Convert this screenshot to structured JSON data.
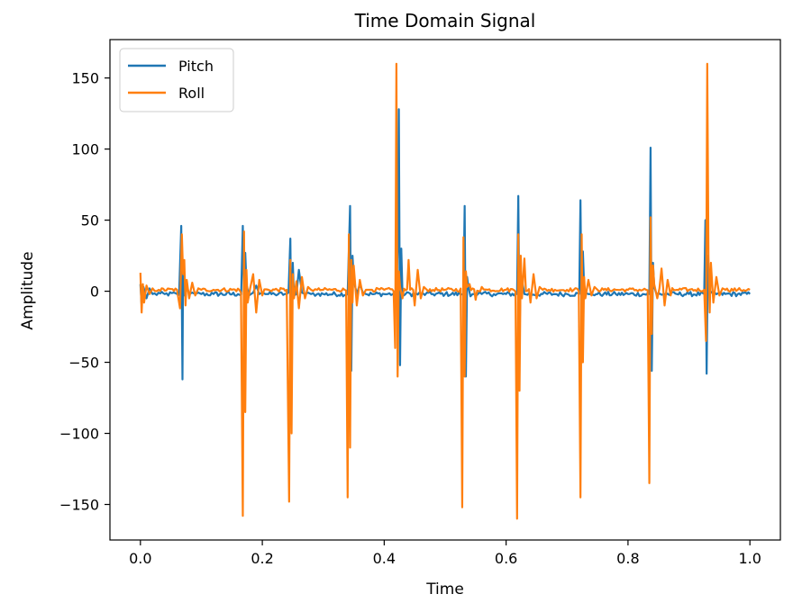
{
  "chart_data": {
    "type": "line",
    "title": "Time Domain Signal",
    "xlabel": "Time",
    "ylabel": "Amplitude",
    "xlim": [
      -0.05,
      1.05
    ],
    "ylim": [
      -175,
      177
    ],
    "xticks": [
      0.0,
      0.2,
      0.4,
      0.6,
      0.8,
      1.0
    ],
    "xtick_labels": [
      "0.0",
      "0.2",
      "0.4",
      "0.6",
      "0.8",
      "1.0"
    ],
    "yticks": [
      -150,
      -100,
      -50,
      0,
      50,
      100,
      150
    ],
    "ytick_labels": [
      "−150",
      "−100",
      "−50",
      "0",
      "50",
      "100",
      "150"
    ],
    "grid": false,
    "legend_position": "upper-left",
    "series": [
      {
        "name": "Pitch",
        "color": "#1f77b4",
        "baseline": -2,
        "x": [
          0.0,
          0.002,
          0.005,
          0.01,
          0.015,
          0.02,
          0.03,
          0.04,
          0.06,
          0.067,
          0.069,
          0.07,
          0.072,
          0.075,
          0.08,
          0.085,
          0.09,
          0.095,
          0.1,
          0.12,
          0.16,
          0.168,
          0.17,
          0.172,
          0.174,
          0.178,
          0.185,
          0.19,
          0.195,
          0.2,
          0.205,
          0.21,
          0.22,
          0.24,
          0.246,
          0.248,
          0.25,
          0.252,
          0.256,
          0.26,
          0.265,
          0.27,
          0.275,
          0.28,
          0.29,
          0.3,
          0.34,
          0.344,
          0.346,
          0.348,
          0.35,
          0.355,
          0.36,
          0.365,
          0.37,
          0.38,
          0.4,
          0.42,
          0.422,
          0.424,
          0.426,
          0.428,
          0.43,
          0.44,
          0.45,
          0.46,
          0.47,
          0.48,
          0.5,
          0.53,
          0.532,
          0.534,
          0.536,
          0.538,
          0.545,
          0.55,
          0.56,
          0.58,
          0.6,
          0.618,
          0.62,
          0.622,
          0.624,
          0.626,
          0.63,
          0.64,
          0.65,
          0.66,
          0.68,
          0.7,
          0.72,
          0.722,
          0.724,
          0.726,
          0.728,
          0.735,
          0.74,
          0.75,
          0.76,
          0.78,
          0.8,
          0.835,
          0.837,
          0.839,
          0.841,
          0.843,
          0.85,
          0.86,
          0.87,
          0.88,
          0.9,
          0.925,
          0.927,
          0.929,
          0.931,
          0.933,
          0.94,
          0.95,
          0.96,
          0.98,
          1.0
        ],
        "y": [
          5,
          -10,
          3,
          -5,
          2,
          -2,
          -1,
          -2,
          -2,
          46,
          -62,
          20,
          -3,
          5,
          -2,
          -1,
          -2,
          -1,
          -2,
          -2,
          -2,
          46,
          -3,
          27,
          5,
          -3,
          -1,
          4,
          -2,
          -1,
          -2,
          -2,
          -2,
          -2,
          37,
          -42,
          20,
          -3,
          -2,
          15,
          -1,
          -2,
          -1,
          -2,
          -2,
          -2,
          -2,
          60,
          -56,
          25,
          8,
          -2,
          5,
          -1,
          -2,
          -2,
          -2,
          -2,
          30,
          128,
          -52,
          30,
          -2,
          -1,
          -2,
          -2,
          -1,
          -2,
          -2,
          -2,
          60,
          -60,
          10,
          3,
          -2,
          -2,
          -2,
          -2,
          -2,
          -2,
          67,
          -30,
          10,
          8,
          -2,
          -2,
          -2,
          -2,
          -2,
          -2,
          -2,
          64,
          -20,
          28,
          3,
          -2,
          -2,
          -2,
          -2,
          -2,
          -2,
          -2,
          101,
          -56,
          20,
          3,
          -2,
          -2,
          -2,
          -2,
          -2,
          -2,
          50,
          -58,
          25,
          -2,
          -2,
          -2,
          -2,
          -2,
          -2
        ]
      },
      {
        "name": "Roll",
        "color": "#ff7f0e",
        "baseline": 1,
        "x": [
          0.0,
          0.002,
          0.004,
          0.006,
          0.01,
          0.015,
          0.02,
          0.03,
          0.06,
          0.065,
          0.068,
          0.07,
          0.072,
          0.074,
          0.076,
          0.08,
          0.085,
          0.09,
          0.095,
          0.1,
          0.12,
          0.165,
          0.168,
          0.17,
          0.172,
          0.174,
          0.176,
          0.18,
          0.185,
          0.19,
          0.195,
          0.2,
          0.21,
          0.24,
          0.244,
          0.246,
          0.248,
          0.25,
          0.252,
          0.256,
          0.26,
          0.265,
          0.27,
          0.275,
          0.28,
          0.29,
          0.3,
          0.34,
          0.342,
          0.344,
          0.346,
          0.348,
          0.35,
          0.355,
          0.36,
          0.365,
          0.37,
          0.375,
          0.38,
          0.4,
          0.418,
          0.42,
          0.422,
          0.424,
          0.426,
          0.43,
          0.44,
          0.45,
          0.455,
          0.46,
          0.465,
          0.47,
          0.48,
          0.5,
          0.528,
          0.53,
          0.532,
          0.534,
          0.536,
          0.54,
          0.55,
          0.56,
          0.57,
          0.6,
          0.618,
          0.62,
          0.622,
          0.624,
          0.626,
          0.63,
          0.64,
          0.645,
          0.65,
          0.655,
          0.66,
          0.68,
          0.7,
          0.722,
          0.724,
          0.726,
          0.728,
          0.73,
          0.735,
          0.74,
          0.745,
          0.75,
          0.76,
          0.78,
          0.8,
          0.835,
          0.837,
          0.839,
          0.841,
          0.843,
          0.848,
          0.855,
          0.86,
          0.865,
          0.87,
          0.88,
          0.9,
          0.925,
          0.928,
          0.93,
          0.932,
          0.934,
          0.936,
          0.94,
          0.945,
          0.95,
          0.955,
          0.96,
          0.98,
          1.0
        ],
        "y": [
          13,
          -15,
          5,
          -8,
          4,
          -2,
          2,
          1,
          1,
          -12,
          40,
          12,
          22,
          -10,
          8,
          -5,
          6,
          -3,
          2,
          1,
          1,
          -1,
          -158,
          42,
          -85,
          15,
          -8,
          2,
          12,
          -15,
          8,
          -3,
          1,
          1,
          -148,
          22,
          -100,
          12,
          -5,
          7,
          -12,
          10,
          -5,
          3,
          1,
          1,
          1,
          -145,
          40,
          -110,
          22,
          -8,
          18,
          -10,
          8,
          -3,
          1,
          1,
          1,
          1,
          -40,
          160,
          -60,
          14,
          3,
          -5,
          22,
          -10,
          15,
          -5,
          3,
          1,
          1,
          1,
          -152,
          38,
          -60,
          14,
          3,
          5,
          -6,
          3,
          1,
          1,
          -160,
          40,
          -70,
          25,
          -5,
          23,
          -8,
          12,
          -5,
          3,
          1,
          1,
          1,
          -145,
          40,
          -50,
          10,
          -5,
          8,
          -3,
          3,
          1,
          1,
          1,
          1,
          -135,
          52,
          -30,
          18,
          5,
          -5,
          16,
          -10,
          8,
          -3,
          1,
          1,
          1,
          -35,
          160,
          25,
          -15,
          20,
          -8,
          10,
          -3,
          2,
          1,
          1,
          1
        ]
      }
    ]
  }
}
